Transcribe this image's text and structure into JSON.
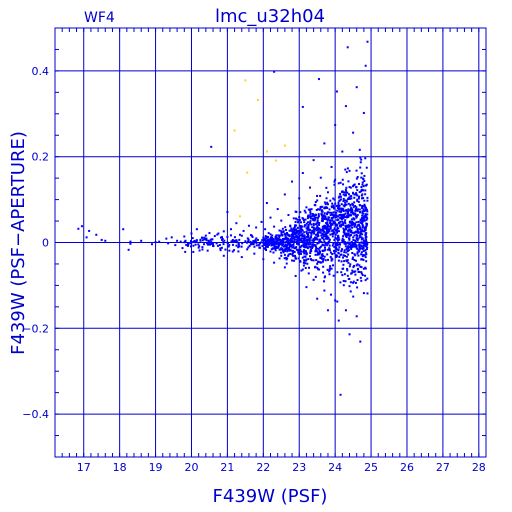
{
  "chart_data": {
    "type": "scatter",
    "panel_label": "WF4",
    "title": "lmc_u32h04",
    "xlabel": "F439W (PSF)",
    "ylabel": "F439W (PSF−APERTURE)",
    "xlim": [
      16.2,
      28.2
    ],
    "ylim": [
      -0.5,
      0.5
    ],
    "x_ticks": [
      17,
      18,
      19,
      20,
      21,
      22,
      23,
      24,
      25,
      26,
      27,
      28
    ],
    "y_ticks": [
      -0.4,
      -0.2,
      0,
      0.2,
      0.4
    ],
    "y_tick_labels": [
      "−0.4",
      "−0.2",
      "0",
      "0.2",
      "0.4"
    ],
    "grid": true,
    "colors": {
      "axes": "#0000cc",
      "main_series": "#0000ff",
      "flagged_series": "#ffd21e"
    },
    "series": [
      {
        "color": "#0000ff",
        "points": [
          [
            16.85,
            0.032
          ],
          [
            16.95,
            0.038
          ],
          [
            17.08,
            0.012
          ],
          [
            17.15,
            0.027
          ],
          [
            17.35,
            0.018
          ],
          [
            17.5,
            0.006
          ],
          [
            17.6,
            0.004
          ],
          [
            18.1,
            0.031
          ],
          [
            18.25,
            -0.017
          ],
          [
            18.3,
            0.002
          ],
          [
            18.3,
            -0.003
          ],
          [
            18.6,
            0.004
          ],
          [
            18.9,
            -0.004
          ],
          [
            19.0,
            0.001
          ],
          [
            19.1,
            0.002
          ],
          [
            19.3,
            0.009
          ],
          [
            19.35,
            -0.002
          ],
          [
            19.45,
            0.012
          ],
          [
            19.55,
            -0.006
          ],
          [
            19.6,
            0.004
          ],
          [
            19.7,
            0.002
          ],
          [
            19.75,
            -0.013
          ],
          [
            19.8,
            0.014
          ],
          [
            19.9,
            -0.008
          ],
          [
            20.0,
            0.021
          ],
          [
            20.05,
            -0.022
          ],
          [
            20.1,
            0.002
          ],
          [
            20.15,
            0.031
          ],
          [
            20.2,
            -0.012
          ],
          [
            20.25,
            0.004
          ],
          [
            20.3,
            0.011
          ],
          [
            20.35,
            -0.004
          ],
          [
            20.4,
            0.016
          ],
          [
            20.45,
            -0.019
          ],
          [
            20.5,
            0.022
          ],
          [
            20.55,
            0.001
          ],
          [
            20.55,
            0.223
          ],
          [
            20.6,
            -0.008
          ],
          [
            20.65,
            0.015
          ],
          [
            20.7,
            -0.002
          ],
          [
            20.75,
            0.021
          ],
          [
            20.8,
            -0.014
          ],
          [
            20.85,
            0.006
          ],
          [
            20.9,
            0.026
          ],
          [
            20.9,
            -0.031
          ],
          [
            21.0,
            0.013
          ],
          [
            21.0,
            0.071
          ],
          [
            21.05,
            -0.006
          ],
          [
            21.1,
            0.031
          ],
          [
            21.15,
            -0.021
          ],
          [
            21.2,
            0.004
          ],
          [
            21.25,
            0.045
          ],
          [
            21.3,
            -0.011
          ],
          [
            21.35,
            0.018
          ],
          [
            21.4,
            -0.034
          ],
          [
            21.45,
            0.027
          ],
          [
            21.5,
            0.003
          ],
          [
            21.55,
            -0.016
          ],
          [
            21.6,
            0.039
          ],
          [
            21.65,
            -0.004
          ],
          [
            21.7,
            0.013
          ],
          [
            21.75,
            -0.026
          ],
          [
            21.8,
            0.035
          ],
          [
            21.85,
            0.006
          ],
          [
            21.9,
            -0.012
          ],
          [
            21.95,
            0.048
          ],
          [
            22.0,
            0.011
          ],
          [
            22.0,
            -0.039
          ],
          [
            22.05,
            0.031
          ],
          [
            22.1,
            -0.008
          ],
          [
            22.1,
            0.092
          ],
          [
            22.15,
            0.022
          ],
          [
            22.2,
            -0.021
          ],
          [
            22.2,
            0.058
          ],
          [
            22.25,
            0.004
          ],
          [
            22.3,
            0.037
          ],
          [
            22.3,
            -0.047
          ],
          [
            22.35,
            0.014
          ],
          [
            22.4,
            -0.012
          ],
          [
            22.4,
            0.078
          ],
          [
            22.45,
            0.028
          ],
          [
            22.5,
            -0.031
          ],
          [
            22.5,
            0.051
          ],
          [
            22.55,
            0.006
          ],
          [
            22.6,
            0.112
          ],
          [
            22.6,
            -0.058
          ],
          [
            22.65,
            0.021
          ],
          [
            22.7,
            -0.014
          ],
          [
            22.7,
            0.064
          ],
          [
            22.75,
            0.038
          ],
          [
            22.8,
            -0.042
          ],
          [
            22.8,
            0.142
          ],
          [
            22.85,
            0.009
          ],
          [
            22.9,
            0.072
          ],
          [
            22.9,
            -0.078
          ],
          [
            22.95,
            0.026
          ],
          [
            23.0,
            -0.021
          ],
          [
            23.0,
            0.103
          ],
          [
            23.05,
            0.047
          ],
          [
            23.1,
            -0.063
          ],
          [
            23.1,
            0.162
          ],
          [
            23.15,
            0.015
          ],
          [
            23.2,
            0.082
          ],
          [
            23.2,
            -0.104
          ],
          [
            23.25,
            0.034
          ],
          [
            23.3,
            -0.032
          ],
          [
            23.3,
            0.128
          ],
          [
            23.35,
            0.061
          ],
          [
            23.4,
            -0.087
          ],
          [
            23.4,
            0.192
          ],
          [
            23.45,
            0.008
          ],
          [
            23.5,
            0.098
          ],
          [
            23.5,
            -0.131
          ],
          [
            23.55,
            0.041
          ],
          [
            23.6,
            -0.047
          ],
          [
            23.6,
            0.151
          ],
          [
            23.65,
            0.072
          ],
          [
            23.7,
            -0.112
          ],
          [
            23.7,
            0.231
          ],
          [
            23.75,
            0.019
          ],
          [
            23.8,
            0.117
          ],
          [
            23.8,
            -0.158
          ],
          [
            23.85,
            0.052
          ],
          [
            23.9,
            -0.061
          ],
          [
            23.9,
            0.176
          ],
          [
            23.95,
            0.086
          ],
          [
            24.0,
            -0.135
          ],
          [
            24.0,
            0.274
          ],
          [
            24.05,
            0.027
          ],
          [
            24.1,
            0.138
          ],
          [
            24.1,
            -0.182
          ],
          [
            24.15,
            0.063
          ],
          [
            24.2,
            -0.076
          ],
          [
            24.2,
            0.212
          ],
          [
            24.25,
            0.098
          ],
          [
            24.3,
            -0.158
          ],
          [
            24.3,
            0.318
          ],
          [
            24.35,
            0.036
          ],
          [
            24.4,
            0.167
          ],
          [
            24.4,
            -0.214
          ],
          [
            24.45,
            0.074
          ],
          [
            24.5,
            -0.094
          ],
          [
            24.5,
            0.256
          ],
          [
            24.55,
            0.112
          ],
          [
            24.6,
            -0.172
          ],
          [
            24.6,
            0.362
          ],
          [
            24.65,
            0.048
          ],
          [
            24.7,
            0.198
          ],
          [
            24.7,
            -0.231
          ],
          [
            24.75,
            0.085
          ],
          [
            24.8,
            0.302
          ],
          [
            24.8,
            -0.118
          ],
          [
            24.85,
            0.412
          ],
          [
            24.85,
            0.133
          ],
          [
            24.9,
            0.468
          ],
          [
            22.3,
            0.398
          ],
          [
            23.55,
            0.381
          ],
          [
            24.15,
            -0.355
          ],
          [
            24.35,
            0.455
          ],
          [
            23.1,
            0.316
          ],
          [
            24.05,
            0.352
          ]
        ]
      },
      {
        "color": "#ffd21e",
        "points": [
          [
            21.5,
            0.378
          ],
          [
            21.85,
            0.332
          ],
          [
            21.2,
            0.261
          ],
          [
            21.55,
            0.163
          ],
          [
            21.35,
            0.061
          ],
          [
            22.1,
            0.212
          ],
          [
            22.35,
            0.191
          ],
          [
            22.6,
            0.226
          ]
        ]
      }
    ]
  }
}
